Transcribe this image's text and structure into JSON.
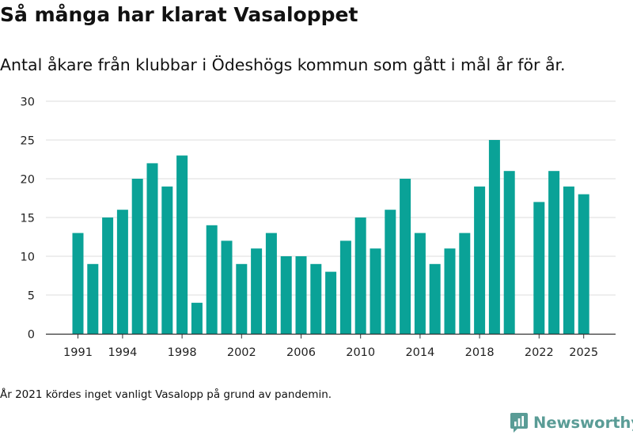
{
  "title": "Så många har klarat Vasaloppet",
  "subtitle": "Antal åkare från klubbar i Ödeshögs kommun som gått i mål år för år.",
  "note": "År 2021 kördes inget vanligt Vasalopp på grund av pandemin.",
  "brand": {
    "name": "Newsworthy",
    "icon": "newsworthy-logo-icon"
  },
  "colors": {
    "bar": "#0aa297",
    "grid": "#dddddd",
    "axis": "#333333",
    "brand": "#5a9c96"
  },
  "chart_data": {
    "type": "bar",
    "title": "Så många har klarat Vasaloppet",
    "xlabel": "",
    "ylabel": "",
    "ylim": [
      0,
      30
    ],
    "yticks": [
      0,
      5,
      10,
      15,
      20,
      25,
      30
    ],
    "xticks": [
      1991,
      1994,
      1998,
      2002,
      2006,
      2010,
      2014,
      2018,
      2022,
      2025
    ],
    "categories": [
      1991,
      1992,
      1993,
      1994,
      1995,
      1996,
      1997,
      1998,
      1999,
      2000,
      2001,
      2002,
      2003,
      2004,
      2005,
      2006,
      2007,
      2008,
      2009,
      2010,
      2011,
      2012,
      2013,
      2014,
      2015,
      2016,
      2017,
      2018,
      2019,
      2020,
      2021,
      2022,
      2023,
      2024,
      2025
    ],
    "values": [
      13,
      9,
      15,
      16,
      20,
      22,
      19,
      23,
      4,
      14,
      12,
      9,
      11,
      13,
      10,
      10,
      9,
      8,
      12,
      15,
      11,
      16,
      20,
      13,
      9,
      11,
      13,
      19,
      25,
      21,
      null,
      17,
      21,
      19,
      18
    ]
  }
}
